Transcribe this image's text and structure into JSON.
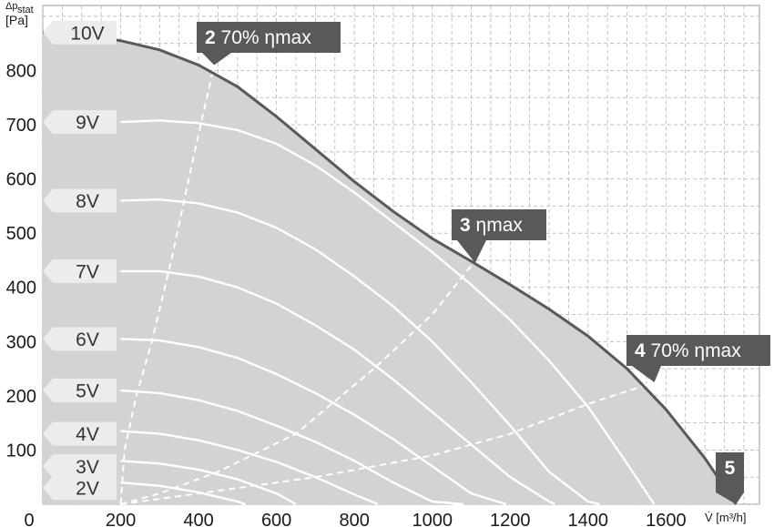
{
  "chart_data": {
    "type": "line",
    "title": "",
    "xlabel": "V̇ [m³/h]",
    "ylabel_line1": "Δp",
    "ylabel_sub": "stat",
    "ylabel_line2": "[Pa]",
    "xlim": [
      0,
      1840
    ],
    "ylim": [
      0,
      920
    ],
    "xticks": [
      0,
      200,
      400,
      600,
      800,
      1000,
      1200,
      1400,
      1600
    ],
    "yticks": [
      100,
      200,
      300,
      400,
      500,
      600,
      700,
      800
    ],
    "xtick_labels": [
      "0",
      "200",
      "400",
      "600",
      "800",
      "1000",
      "1200",
      "1400",
      "1600"
    ],
    "ytick_labels": [
      "100",
      "200",
      "300",
      "400",
      "500",
      "600",
      "700",
      "800"
    ],
    "grid": true,
    "colors": {
      "fill": "#d3d3d3",
      "envelope": "#595959",
      "curves": "#ffffff",
      "label_bg": "#ececec",
      "annotation_bg": "#595959"
    },
    "series": [
      {
        "name": "10V",
        "x": [
          0,
          100,
          200,
          300,
          400,
          500,
          600,
          700,
          800,
          900,
          1000,
          1100,
          1200,
          1300,
          1400,
          1500,
          1600,
          1700,
          1780
        ],
        "y": [
          870,
          865,
          855,
          838,
          810,
          770,
          715,
          655,
          595,
          540,
          490,
          448,
          405,
          360,
          310,
          250,
          175,
          85,
          0
        ]
      },
      {
        "name": "9V",
        "x": [
          200,
          300,
          400,
          500,
          600,
          700,
          800,
          900,
          1000,
          1100,
          1200,
          1300,
          1400,
          1500,
          1570
        ],
        "y": [
          705,
          708,
          703,
          690,
          665,
          625,
          575,
          520,
          465,
          405,
          340,
          265,
          180,
          75,
          0
        ]
      },
      {
        "name": "8V",
        "x": [
          200,
          300,
          400,
          500,
          600,
          700,
          800,
          900,
          1000,
          1100,
          1200,
          1300,
          1400,
          1430
        ],
        "y": [
          560,
          562,
          555,
          538,
          510,
          470,
          420,
          365,
          300,
          225,
          145,
          60,
          5,
          0
        ]
      },
      {
        "name": "7V",
        "x": [
          200,
          300,
          400,
          500,
          600,
          700,
          800,
          900,
          1000,
          1100,
          1200,
          1300,
          1315
        ],
        "y": [
          430,
          430,
          420,
          400,
          370,
          330,
          285,
          230,
          170,
          110,
          50,
          5,
          0
        ]
      },
      {
        "name": "6V",
        "x": [
          200,
          300,
          400,
          500,
          600,
          700,
          800,
          900,
          1000,
          1100,
          1190
        ],
        "y": [
          305,
          302,
          290,
          270,
          240,
          205,
          165,
          120,
          70,
          20,
          0
        ]
      },
      {
        "name": "5V",
        "x": [
          200,
          300,
          400,
          500,
          600,
          700,
          800,
          900,
          1000,
          1080
        ],
        "y": [
          210,
          205,
          192,
          172,
          145,
          115,
          80,
          40,
          5,
          0
        ]
      },
      {
        "name": "4V",
        "x": [
          200,
          300,
          400,
          500,
          600,
          700,
          800,
          860
        ],
        "y": [
          135,
          130,
          118,
          100,
          78,
          50,
          18,
          0
        ]
      },
      {
        "name": "3V",
        "x": [
          200,
          300,
          400,
          500,
          600,
          650
        ],
        "y": [
          80,
          75,
          64,
          46,
          20,
          0
        ]
      },
      {
        "name": "2V",
        "x": [
          200,
          300,
          400,
          500,
          520
        ],
        "y": [
          40,
          34,
          22,
          5,
          0
        ]
      }
    ],
    "dashed_lines": [
      {
        "x": [
          200,
          210,
          240,
          280,
          330,
          390,
          440
        ],
        "y": [
          0,
          100,
          200,
          300,
          450,
          650,
          810
        ]
      },
      {
        "x": [
          200,
          300,
          450,
          650,
          850,
          1000,
          1100
        ],
        "y": [
          0,
          20,
          60,
          130,
          250,
          350,
          440
        ]
      },
      {
        "x": [
          200,
          400,
          700,
          1000,
          1200,
          1400,
          1570
        ],
        "y": [
          0,
          20,
          50,
          90,
          130,
          185,
          225
        ]
      }
    ],
    "voltage_labels": [
      {
        "text": "10V",
        "y": 870
      },
      {
        "text": "9V",
        "y": 705
      },
      {
        "text": "8V",
        "y": 560
      },
      {
        "text": "7V",
        "y": 430
      },
      {
        "text": "6V",
        "y": 305
      },
      {
        "text": "5V",
        "y": 210
      },
      {
        "text": "4V",
        "y": 130
      },
      {
        "text": "3V",
        "y": 70
      },
      {
        "text": "2V",
        "y": 30
      }
    ],
    "annotations": [
      {
        "num": "2",
        "text": "70% ηmax",
        "x": 440,
        "y": 810
      },
      {
        "num": "3",
        "text": "ηmax",
        "x": 1110,
        "y": 445
      },
      {
        "num": "4",
        "text": "70% ηmax",
        "x": 1570,
        "y": 225
      },
      {
        "num": "5",
        "text": "",
        "x": 1780,
        "y": 0
      }
    ]
  }
}
